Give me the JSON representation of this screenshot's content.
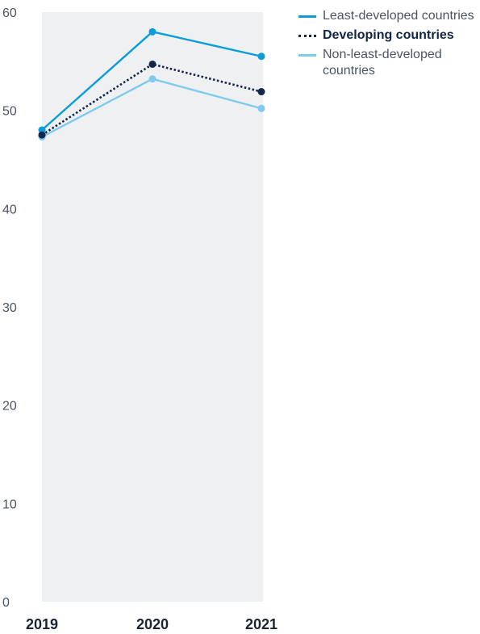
{
  "chart_data": {
    "type": "line",
    "categories": [
      "2019",
      "2020",
      "2021"
    ],
    "ylim": [
      0,
      60
    ],
    "yticks": [
      "0",
      "10",
      "20",
      "30",
      "40",
      "50",
      "60"
    ],
    "grid": false,
    "legend_position": "top-right",
    "plot_background": "#eff0f2",
    "series": [
      {
        "name": "Least-developed countries",
        "values": [
          48,
          58,
          55.5
        ],
        "color": "#0a9dd9",
        "style": "solid",
        "bold": false
      },
      {
        "name": "Developing countries",
        "values": [
          47.5,
          54.7,
          51.9
        ],
        "color": "#13274a",
        "style": "dotted",
        "bold": true
      },
      {
        "name": "Non-least-developed countries",
        "values": [
          47.3,
          53.2,
          50.2
        ],
        "color": "#7ecbef",
        "style": "solid",
        "bold": false
      }
    ]
  }
}
